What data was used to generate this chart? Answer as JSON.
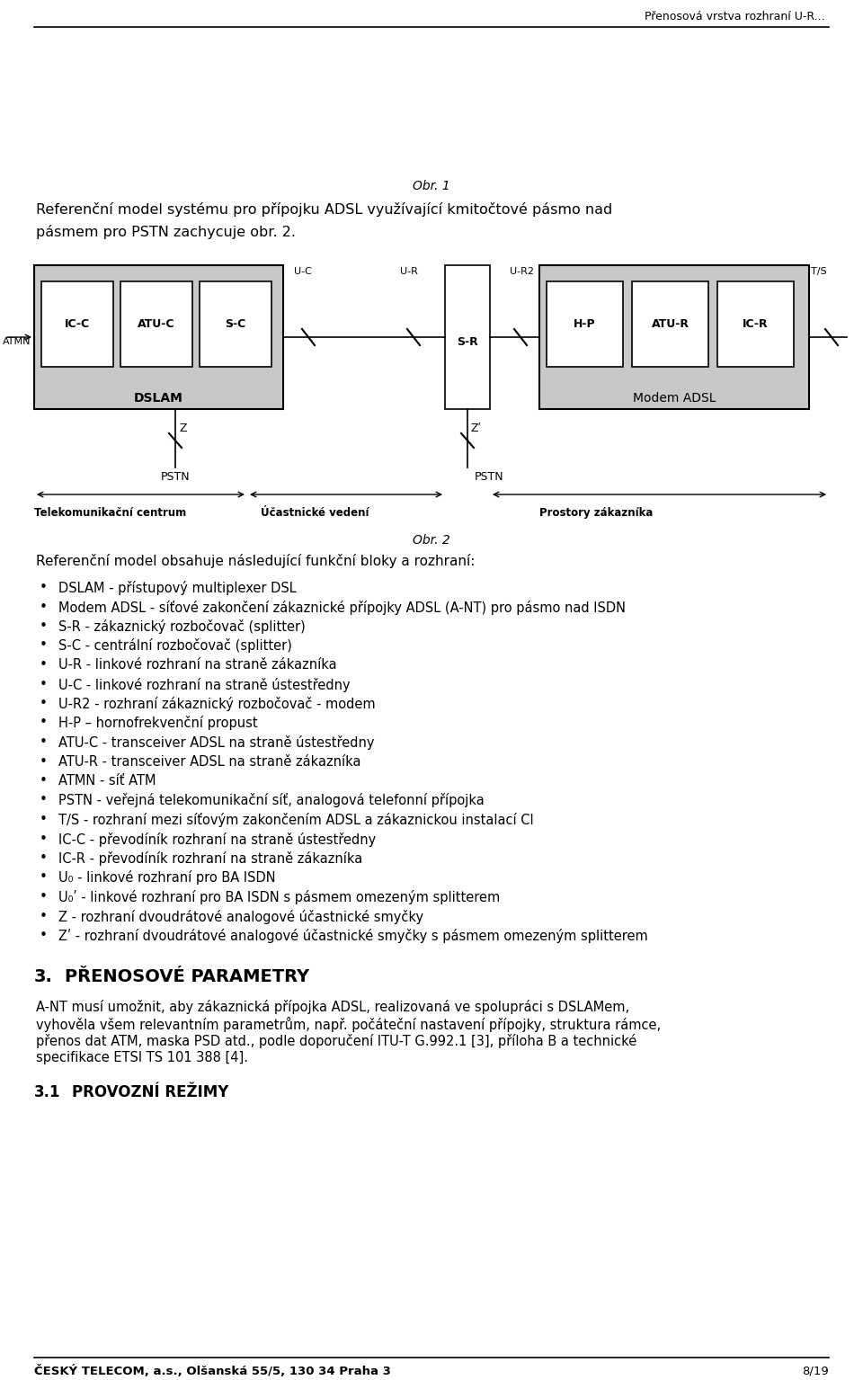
{
  "header_right": "Přenosová vrstva rozhraní U-R...",
  "fig_width": 9.6,
  "fig_height": 15.35,
  "bg_color": "#ffffff",
  "gray_box_color": "#c8c8c8",
  "obr1_label": "Obr. 1",
  "intro_line1": "Referenční model systému pro přípojku ADSL využívající kmitočtové pásmo nad",
  "intro_line2": "pásmem pro PSTN zachycuje obr. 2.",
  "obr2_label": "Obr. 2",
  "obr2_text": "Referenční model obsahuje následující funkční bloky a rozhraní:",
  "bullet_items": [
    "DSLAM - přístupový multiplexer DSL",
    "Modem ADSL - síťové zakončení zákaznické přípojky ADSL (A-NT) pro pásmo nad ISDN",
    "S-R - zákaznický rozbočovač (splitter)",
    "S-C - centrální rozbočovač (splitter)",
    "U-R - linkové rozhraní na straně zákazníka",
    "U-C - linkové rozhraní na straně ústestředny",
    "U-R2 - rozhraní zákaznický rozbočovač - modem",
    "H-P – hornofrekvenční propust",
    "ATU-C - transceiver ADSL na straně ústestředny",
    "ATU-R - transceiver ADSL na straně zákazníka",
    "ATMN - síť ATM",
    "PSTN - veřejná telekomunikační síť, analogová telefonní přípojka",
    "T/S - rozhraní mezi síťovým zakončením ADSL a zákaznickou instalací CI",
    "IC-C - převodíník rozhraní na straně ústestředny",
    "IC-R - převodíník rozhraní na straně zákazníka",
    "U₀ - linkové rozhraní pro BA ISDN",
    "U₀ʹ - linkové rozhraní pro BA ISDN s pásmem omezeným splitterem",
    "Z - rozhraní dvoudrátové analogové účastnické smyčky",
    "Zʹ - rozhraní dvoudrátové analogové účastnické smyčky s pásmem omezeným splitterem"
  ],
  "section3_text_lines": [
    "A-NT musí umožnit, aby zákaznická přípojka ADSL, realizovaná ve spolupráci s DSLAMem,",
    "vyhověla všem relevantním parametrům, např. počáteční nastavení přípojky, struktura rámce,",
    "přenos dat ATM, maska PSD atd., podle doporučení ITU-T G.992.1 [3], příloha B a technické",
    "specifikace ETSI TS 101 388 [4]."
  ],
  "footer_left": "ČESKÝ TELECOM, a.s., Olšanská 55/5, 130 34 Praha 3",
  "footer_right": "8/19"
}
